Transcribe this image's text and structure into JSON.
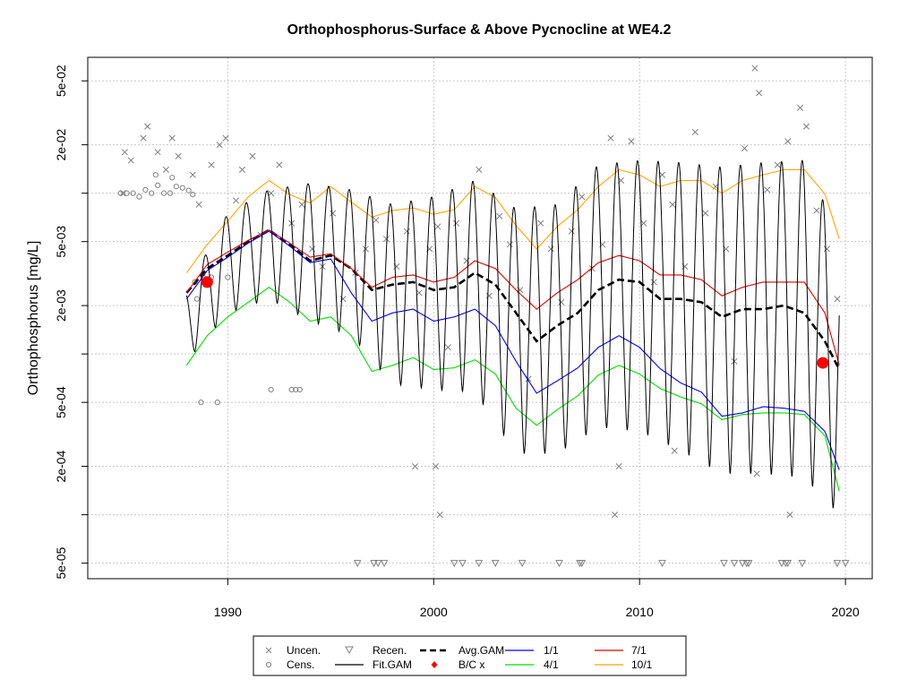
{
  "chart_data": {
    "type": "line",
    "title": "Orthophosphorus-Surface & Above Pycnocline at WE4.2",
    "ylabel": "Orthophosphorus [mg/L]",
    "xlabel": "",
    "y_scale": "log",
    "xlim": [
      1983.2,
      2021.3
    ],
    "ylim": [
      4e-05,
      0.07
    ],
    "x_ticks": [
      1990,
      2000,
      2010,
      2020
    ],
    "x_tick_labels": [
      "1990",
      "2000",
      "2010",
      "2020"
    ],
    "y_ticks": [
      5e-05,
      0.0001,
      0.0002,
      0.0005,
      0.001,
      0.002,
      0.005,
      0.01,
      0.02,
      0.05
    ],
    "y_tick_labels": [
      "5e-05",
      "",
      "2e-04",
      "5e-04",
      "",
      "2e-03",
      "5e-03",
      "",
      "2e-02",
      "5e-02"
    ],
    "grid": true,
    "legend_placement": "bottom",
    "legend": [
      {
        "label": "Uncen.",
        "marker": "x",
        "color": "#808080"
      },
      {
        "label": "Cens.",
        "marker": "circle",
        "color": "#808080"
      },
      {
        "label": "Recen.",
        "marker": "triangle-down",
        "color": "#808080"
      },
      {
        "label": "Fit.GAM",
        "line": "solid",
        "color": "#000000"
      },
      {
        "label": "Avg.GAM",
        "line": "dashed",
        "color": "#000000"
      },
      {
        "label": "B/C x",
        "marker": "diamond",
        "color": "#ff0000"
      },
      {
        "label": "1/1",
        "line": "solid",
        "color": "#0000ff"
      },
      {
        "label": "4/1",
        "line": "solid",
        "color": "#00dd00"
      },
      {
        "label": "7/1",
        "line": "solid",
        "color": "#dd0000"
      },
      {
        "label": "10/1",
        "line": "solid",
        "color": "#ffa500"
      }
    ],
    "series": [
      {
        "name": "Avg.GAM",
        "color": "#000000",
        "style": "dashed",
        "x": [
          1988.0,
          1989.0,
          1990.0,
          1991.0,
          1992.0,
          1993.0,
          1994.0,
          1995.0,
          1996.0,
          1997.0,
          1998.0,
          1999.0,
          2000.0,
          2001.0,
          2002.0,
          2003.0,
          2004.0,
          2005.0,
          2006.0,
          2007.0,
          2008.0,
          2009.0,
          2010.0,
          2011.0,
          2012.0,
          2013.0,
          2014.0,
          2015.0,
          2016.0,
          2017.0,
          2018.0,
          2019.0,
          2019.7
        ],
        "y": [
          0.0024,
          0.0034,
          0.0041,
          0.005,
          0.0059,
          0.0048,
          0.0038,
          0.0041,
          0.0034,
          0.0025,
          0.0027,
          0.0028,
          0.0025,
          0.0026,
          0.0032,
          0.0027,
          0.0018,
          0.0012,
          0.0015,
          0.0018,
          0.0025,
          0.0029,
          0.0028,
          0.0022,
          0.0022,
          0.0021,
          0.0017,
          0.0019,
          0.0019,
          0.002,
          0.0018,
          0.0012,
          0.0008
        ]
      },
      {
        "name": "1/1",
        "color": "#0000ff",
        "style": "solid",
        "x": [
          1988.0,
          1989.0,
          1990.0,
          1991.0,
          1992.0,
          1993.0,
          1994.0,
          1995.0,
          1996.0,
          1997.0,
          1998.0,
          1999.0,
          2000.0,
          2001.0,
          2002.0,
          2003.0,
          2004.0,
          2005.0,
          2006.0,
          2007.0,
          2008.0,
          2009.0,
          2010.0,
          2011.0,
          2012.0,
          2013.0,
          2014.0,
          2015.0,
          2016.0,
          2017.0,
          2018.0,
          2019.0,
          2019.7
        ],
        "y": [
          0.0022,
          0.0033,
          0.004,
          0.0049,
          0.0058,
          0.0047,
          0.0037,
          0.0039,
          0.0024,
          0.0016,
          0.0018,
          0.0019,
          0.0016,
          0.0017,
          0.0019,
          0.0015,
          0.0009,
          0.00057,
          0.00068,
          0.00082,
          0.0011,
          0.0013,
          0.0011,
          0.00081,
          0.00066,
          0.00058,
          0.00041,
          0.00043,
          0.00047,
          0.00046,
          0.00044,
          0.00033,
          0.00019
        ]
      },
      {
        "name": "4/1",
        "color": "#00dd00",
        "style": "solid",
        "x": [
          1988.0,
          1989.0,
          1990.0,
          1991.0,
          1992.0,
          1993.0,
          1994.0,
          1995.0,
          1996.0,
          1997.0,
          1998.0,
          1999.0,
          2000.0,
          2001.0,
          2002.0,
          2003.0,
          2004.0,
          2005.0,
          2006.0,
          2007.0,
          2008.0,
          2009.0,
          2010.0,
          2011.0,
          2012.0,
          2013.0,
          2014.0,
          2015.0,
          2016.0,
          2017.0,
          2018.0,
          2019.0,
          2019.7
        ],
        "y": [
          0.00085,
          0.0013,
          0.0017,
          0.0021,
          0.0026,
          0.0021,
          0.0016,
          0.0017,
          0.0013,
          0.00078,
          0.00085,
          0.00095,
          0.0008,
          0.00082,
          0.00092,
          0.00075,
          0.00046,
          0.00036,
          0.00045,
          0.00055,
          0.00074,
          0.00085,
          0.00075,
          0.00061,
          0.00054,
          0.00049,
          0.00039,
          0.00042,
          0.00043,
          0.00043,
          0.00042,
          0.00031,
          0.00014
        ]
      },
      {
        "name": "7/1",
        "color": "#dd0000",
        "style": "solid",
        "x": [
          1988.0,
          1989.0,
          1990.0,
          1991.0,
          1992.0,
          1993.0,
          1994.0,
          1995.0,
          1996.0,
          1997.0,
          1998.0,
          1999.0,
          2000.0,
          2001.0,
          2002.0,
          2003.0,
          2004.0,
          2005.0,
          2006.0,
          2007.0,
          2008.0,
          2009.0,
          2010.0,
          2011.0,
          2012.0,
          2013.0,
          2014.0,
          2015.0,
          2016.0,
          2017.0,
          2018.0,
          2019.0,
          2019.7
        ],
        "y": [
          0.0024,
          0.0036,
          0.0043,
          0.0051,
          0.0059,
          0.0049,
          0.004,
          0.0042,
          0.0034,
          0.0026,
          0.003,
          0.0031,
          0.0028,
          0.003,
          0.0038,
          0.0034,
          0.0025,
          0.0019,
          0.0024,
          0.0029,
          0.0037,
          0.0041,
          0.0038,
          0.0031,
          0.0031,
          0.0029,
          0.0023,
          0.0026,
          0.0028,
          0.0028,
          0.0028,
          0.0018,
          0.00085
        ]
      },
      {
        "name": "10/1",
        "color": "#ffa500",
        "style": "solid",
        "x": [
          1988.0,
          1989.0,
          1990.0,
          1991.0,
          1992.0,
          1993.0,
          1994.0,
          1995.0,
          1996.0,
          1997.0,
          1998.0,
          1999.0,
          2000.0,
          2001.0,
          2002.0,
          2003.0,
          2004.0,
          2005.0,
          2006.0,
          2007.0,
          2008.0,
          2009.0,
          2010.0,
          2011.0,
          2012.0,
          2013.0,
          2014.0,
          2015.0,
          2016.0,
          2017.0,
          2018.0,
          2019.0,
          2019.7
        ],
        "y": [
          0.0032,
          0.0048,
          0.0067,
          0.0095,
          0.012,
          0.0098,
          0.0087,
          0.011,
          0.0088,
          0.0071,
          0.0078,
          0.0081,
          0.0074,
          0.0079,
          0.011,
          0.0094,
          0.0063,
          0.0045,
          0.0062,
          0.0079,
          0.011,
          0.014,
          0.013,
          0.011,
          0.012,
          0.012,
          0.01,
          0.012,
          0.013,
          0.014,
          0.014,
          0.0099,
          0.0052
        ]
      },
      {
        "name": "Fit.GAM",
        "color": "#000000",
        "style": "solid",
        "seasonal": true,
        "x": [
          1988.0,
          1990.0,
          1992.0,
          1994.0,
          1996.0,
          1998.0,
          2000.0,
          2002.0,
          2004.0,
          2006.0,
          2008.0,
          2010.0,
          2012.0,
          2014.0,
          2016.0,
          2018.0,
          2019.7
        ],
        "y_high": [
          0.0025,
          0.0075,
          0.0105,
          0.0115,
          0.0105,
          0.0085,
          0.0095,
          0.012,
          0.008,
          0.0085,
          0.015,
          0.016,
          0.0155,
          0.0145,
          0.0155,
          0.016,
          0.0055
        ],
        "y_low": [
          0.0009,
          0.0018,
          0.0022,
          0.0016,
          0.0013,
          0.00065,
          0.0006,
          0.00058,
          0.00024,
          0.00024,
          0.00035,
          0.00033,
          0.00025,
          0.00018,
          0.00018,
          0.00017,
          0.0001
        ]
      }
    ],
    "bc_points": [
      {
        "x": 1989.0,
        "y": 0.0028
      },
      {
        "x": 2018.9,
        "y": 0.00088
      }
    ],
    "uncensored_points": [
      {
        "x": 1984.9,
        "y": 0.01
      },
      {
        "x": 1985.0,
        "y": 0.018
      },
      {
        "x": 1985.3,
        "y": 0.016
      },
      {
        "x": 1985.9,
        "y": 0.022
      },
      {
        "x": 1986.1,
        "y": 0.026
      },
      {
        "x": 1986.6,
        "y": 0.018
      },
      {
        "x": 1987.0,
        "y": 0.014
      },
      {
        "x": 1987.3,
        "y": 0.022
      },
      {
        "x": 1987.6,
        "y": 0.017
      },
      {
        "x": 1988.3,
        "y": 0.013
      },
      {
        "x": 1988.6,
        "y": 0.0085
      },
      {
        "x": 1989.2,
        "y": 0.015
      },
      {
        "x": 1989.6,
        "y": 0.02
      },
      {
        "x": 1989.9,
        "y": 0.022
      },
      {
        "x": 1990.4,
        "y": 0.009
      },
      {
        "x": 1990.7,
        "y": 0.014
      },
      {
        "x": 1991.2,
        "y": 0.017
      },
      {
        "x": 1991.6,
        "y": 0.0055
      },
      {
        "x": 1992.1,
        "y": 0.01
      },
      {
        "x": 1992.5,
        "y": 0.015
      },
      {
        "x": 1993.1,
        "y": 0.0065
      },
      {
        "x": 1993.6,
        "y": 0.0085
      },
      {
        "x": 1994.1,
        "y": 0.0045
      },
      {
        "x": 1994.6,
        "y": 0.0035
      },
      {
        "x": 1995.1,
        "y": 0.0075
      },
      {
        "x": 1995.6,
        "y": 0.0022
      },
      {
        "x": 1996.2,
        "y": 0.0032
      },
      {
        "x": 1996.7,
        "y": 0.0045
      },
      {
        "x": 1997.2,
        "y": 0.0068
      },
      {
        "x": 1997.7,
        "y": 0.0052
      },
      {
        "x": 1998.2,
        "y": 0.0035
      },
      {
        "x": 1998.7,
        "y": 0.0058
      },
      {
        "x": 1999.1,
        "y": 0.0002
      },
      {
        "x": 1999.3,
        "y": 0.0024
      },
      {
        "x": 1999.8,
        "y": 0.0045
      },
      {
        "x": 2000.2,
        "y": 0.0062
      },
      {
        "x": 2000.7,
        "y": 0.0011
      },
      {
        "x": 2001.1,
        "y": 0.0065
      },
      {
        "x": 2001.6,
        "y": 0.0038
      },
      {
        "x": 2002.2,
        "y": 0.014
      },
      {
        "x": 2002.7,
        "y": 0.0023
      },
      {
        "x": 2003.2,
        "y": 0.0072
      },
      {
        "x": 2003.7,
        "y": 0.0048
      },
      {
        "x": 2004.2,
        "y": 0.0025
      },
      {
        "x": 2004.6,
        "y": 0.0007
      },
      {
        "x": 2005.2,
        "y": 0.0065
      },
      {
        "x": 2005.7,
        "y": 0.0045
      },
      {
        "x": 2006.2,
        "y": 0.0021
      },
      {
        "x": 2006.7,
        "y": 0.0058
      },
      {
        "x": 2007.2,
        "y": 0.0095
      },
      {
        "x": 2007.7,
        "y": 0.0034
      },
      {
        "x": 2008.2,
        "y": 0.0048
      },
      {
        "x": 2008.6,
        "y": 0.022
      },
      {
        "x": 2009.1,
        "y": 0.012
      },
      {
        "x": 2009.6,
        "y": 0.021
      },
      {
        "x": 2010.2,
        "y": 0.0065
      },
      {
        "x": 2010.7,
        "y": 0.0028
      },
      {
        "x": 2011.1,
        "y": 0.013
      },
      {
        "x": 2011.6,
        "y": 0.0085
      },
      {
        "x": 2012.2,
        "y": 0.0035
      },
      {
        "x": 2012.7,
        "y": 0.024
      },
      {
        "x": 2013.2,
        "y": 0.0075
      },
      {
        "x": 2013.7,
        "y": 0.011
      },
      {
        "x": 2014.2,
        "y": 0.0045
      },
      {
        "x": 2014.6,
        "y": 0.0009
      },
      {
        "x": 2015.1,
        "y": 0.019
      },
      {
        "x": 2015.6,
        "y": 0.06
      },
      {
        "x": 2015.8,
        "y": 0.042
      },
      {
        "x": 2016.2,
        "y": 0.0105
      },
      {
        "x": 2016.7,
        "y": 0.015
      },
      {
        "x": 2017.2,
        "y": 0.021
      },
      {
        "x": 2017.8,
        "y": 0.034
      },
      {
        "x": 2018.1,
        "y": 0.026
      },
      {
        "x": 2018.6,
        "y": 0.0078
      },
      {
        "x": 2019.1,
        "y": 0.0045
      },
      {
        "x": 2019.6,
        "y": 0.0022
      },
      {
        "x": 2000.1,
        "y": 0.0002
      },
      {
        "x": 2009.0,
        "y": 0.0002
      },
      {
        "x": 2011.7,
        "y": 0.00025
      },
      {
        "x": 2015.7,
        "y": 0.00018
      },
      {
        "x": 2000.3,
        "y": 0.0001
      },
      {
        "x": 2008.8,
        "y": 0.0001
      },
      {
        "x": 2017.3,
        "y": 0.0001
      }
    ],
    "censored_points": [
      {
        "x": 1984.8,
        "y": 0.01
      },
      {
        "x": 1985.1,
        "y": 0.01
      },
      {
        "x": 1985.4,
        "y": 0.01
      },
      {
        "x": 1985.7,
        "y": 0.0095
      },
      {
        "x": 1986.0,
        "y": 0.0105
      },
      {
        "x": 1986.3,
        "y": 0.01
      },
      {
        "x": 1986.6,
        "y": 0.0112
      },
      {
        "x": 1986.9,
        "y": 0.01
      },
      {
        "x": 1987.2,
        "y": 0.01
      },
      {
        "x": 1987.5,
        "y": 0.011
      },
      {
        "x": 1987.8,
        "y": 0.0108
      },
      {
        "x": 1988.1,
        "y": 0.0104
      },
      {
        "x": 1988.3,
        "y": 0.0098
      },
      {
        "x": 1986.5,
        "y": 0.013
      },
      {
        "x": 1987.3,
        "y": 0.0125
      },
      {
        "x": 1988.4,
        "y": 0.0028
      },
      {
        "x": 1988.8,
        "y": 0.003
      },
      {
        "x": 1988.5,
        "y": 0.0022
      },
      {
        "x": 1989.2,
        "y": 0.003
      },
      {
        "x": 1990.0,
        "y": 0.003
      },
      {
        "x": 1988.7,
        "y": 0.0005
      },
      {
        "x": 1989.5,
        "y": 0.0005
      },
      {
        "x": 1992.1,
        "y": 0.0006
      },
      {
        "x": 1993.1,
        "y": 0.0006
      },
      {
        "x": 1993.3,
        "y": 0.0006
      },
      {
        "x": 1993.5,
        "y": 0.0006
      }
    ],
    "recensored_points": [
      {
        "x": 1996.3,
        "y": 5e-05
      },
      {
        "x": 1997.1,
        "y": 5e-05
      },
      {
        "x": 1997.3,
        "y": 5e-05
      },
      {
        "x": 1997.6,
        "y": 5e-05
      },
      {
        "x": 2001.0,
        "y": 5e-05
      },
      {
        "x": 2001.4,
        "y": 5e-05
      },
      {
        "x": 2002.2,
        "y": 5e-05
      },
      {
        "x": 2003.0,
        "y": 5e-05
      },
      {
        "x": 2004.3,
        "y": 5e-05
      },
      {
        "x": 2006.1,
        "y": 5e-05
      },
      {
        "x": 2007.1,
        "y": 5e-05
      },
      {
        "x": 2007.2,
        "y": 5e-05
      },
      {
        "x": 2011.1,
        "y": 5e-05
      },
      {
        "x": 2014.1,
        "y": 5e-05
      },
      {
        "x": 2014.6,
        "y": 5e-05
      },
      {
        "x": 2015.0,
        "y": 5e-05
      },
      {
        "x": 2015.2,
        "y": 5e-05
      },
      {
        "x": 2015.3,
        "y": 5e-05
      },
      {
        "x": 2016.9,
        "y": 5e-05
      },
      {
        "x": 2017.1,
        "y": 5e-05
      },
      {
        "x": 2017.2,
        "y": 5e-05
      },
      {
        "x": 2017.9,
        "y": 5e-05
      },
      {
        "x": 2019.6,
        "y": 5e-05
      },
      {
        "x": 2020.0,
        "y": 5e-05
      }
    ]
  }
}
